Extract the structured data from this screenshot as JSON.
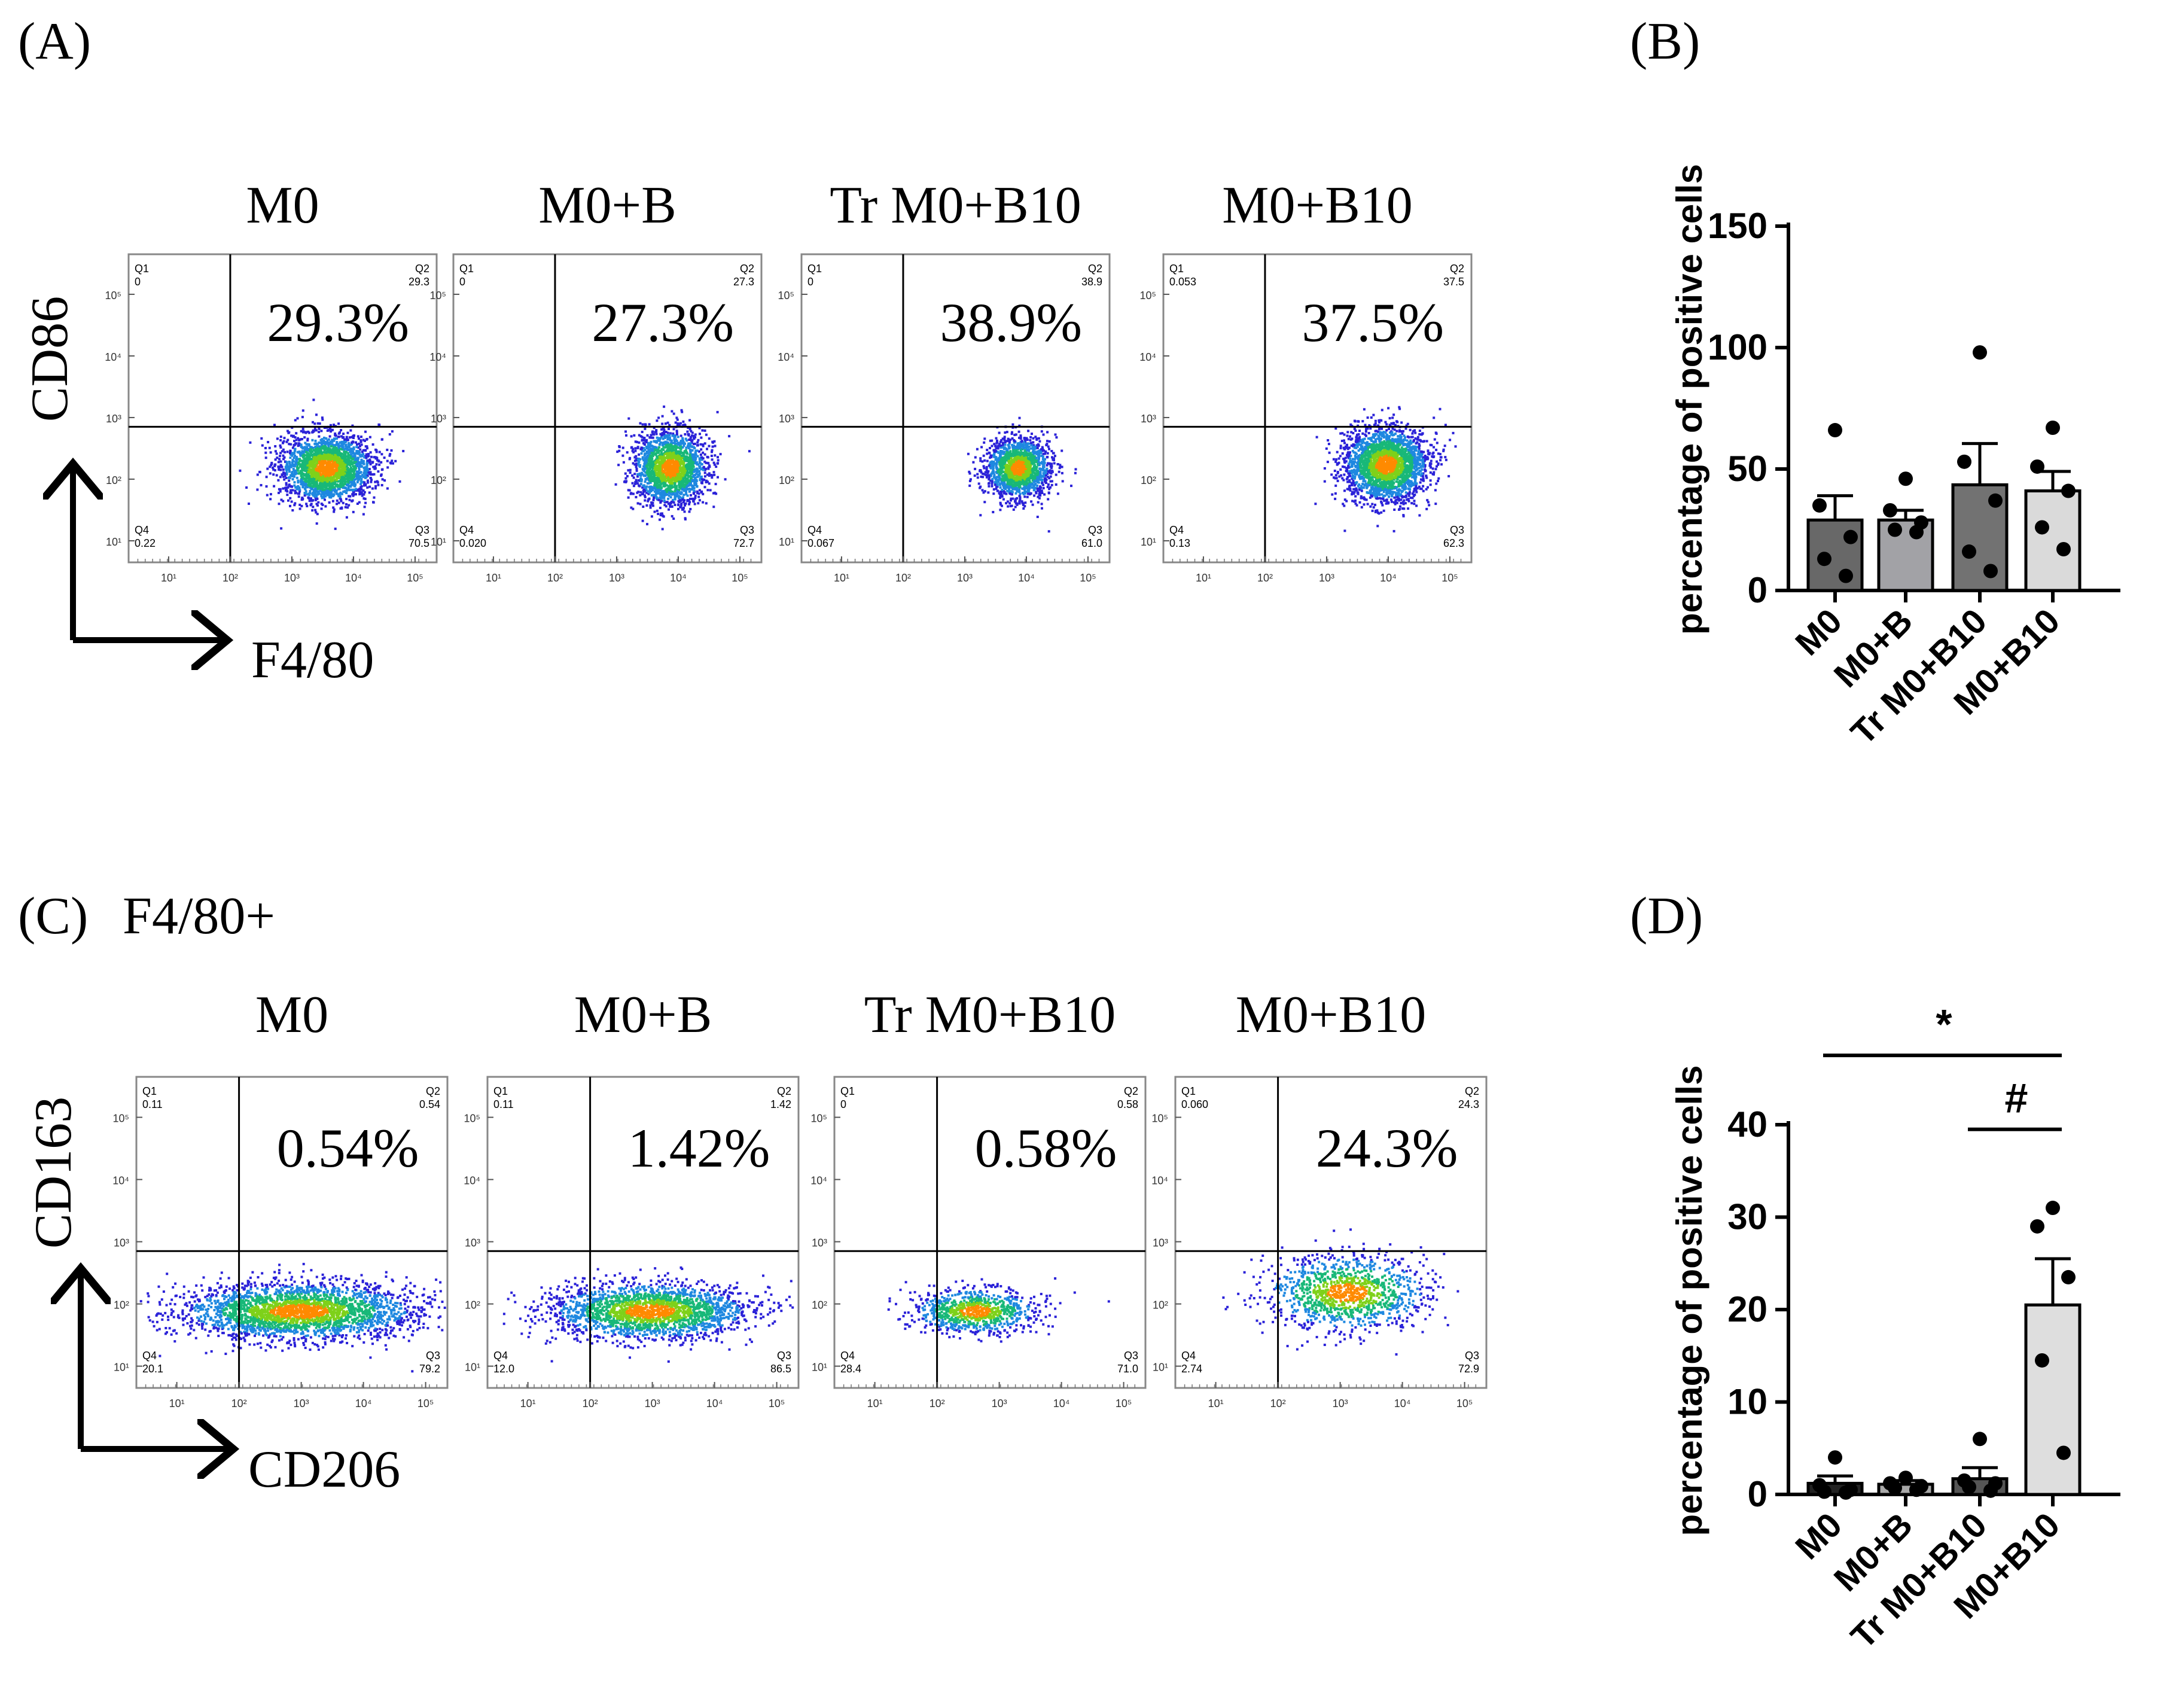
{
  "panel_labels": {
    "a": "(A)",
    "b": "(B)",
    "c": "(C)",
    "c_sub": "F4/80+",
    "d": "(D)"
  },
  "flow_a": {
    "y_axis_label": "CD86",
    "x_axis_label": "F4/80",
    "plots": [
      {
        "title": "M0",
        "big_pct": "29.3%",
        "q1_name": "Q1",
        "q1": "0",
        "q2_name": "Q2",
        "q2": "29.3",
        "q3_name": "Q3",
        "q3": "70.5",
        "q4_name": "Q4",
        "q4": "0.22"
      },
      {
        "title": "M0+B",
        "big_pct": "27.3%",
        "q1_name": "Q1",
        "q1": "0",
        "q2_name": "Q2",
        "q2": "27.3",
        "q3_name": "Q3",
        "q3": "72.7",
        "q4_name": "Q4",
        "q4": "0.020"
      },
      {
        "title": "Tr M0+B10",
        "big_pct": "38.9%",
        "q1_name": "Q1",
        "q1": "0",
        "q2_name": "Q2",
        "q2": "38.9",
        "q3_name": "Q3",
        "q3": "61.0",
        "q4_name": "Q4",
        "q4": "0.067"
      },
      {
        "title": "M0+B10",
        "big_pct": "37.5%",
        "q1_name": "Q1",
        "q1": "0.053",
        "q2_name": "Q2",
        "q2": "37.5",
        "q3_name": "Q3",
        "q3": "62.3",
        "q4_name": "Q4",
        "q4": "0.13"
      }
    ]
  },
  "flow_c": {
    "y_axis_label": "CD163",
    "x_axis_label": "CD206",
    "plots": [
      {
        "title": "M0",
        "big_pct": "0.54%",
        "q1_name": "Q1",
        "q1": "0.11",
        "q2_name": "Q2",
        "q2": "0.54",
        "q3_name": "Q3",
        "q3": "79.2",
        "q4_name": "Q4",
        "q4": "20.1"
      },
      {
        "title": "M0+B",
        "big_pct": "1.42%",
        "q1_name": "Q1",
        "q1": "0.11",
        "q2_name": "Q2",
        "q2": "1.42",
        "q3_name": "Q3",
        "q3": "86.5",
        "q4_name": "Q4",
        "q4": "12.0"
      },
      {
        "title": "Tr M0+B10",
        "big_pct": "0.58%",
        "q1_name": "Q1",
        "q1": "0",
        "q2_name": "Q2",
        "q2": "0.58",
        "q3_name": "Q3",
        "q3": "71.0",
        "q4_name": "Q4",
        "q4": "28.4"
      },
      {
        "title": "M0+B10",
        "big_pct": "24.3%",
        "q1_name": "Q1",
        "q1": "0.060",
        "q2_name": "Q2",
        "q2": "24.3",
        "q3_name": "Q3",
        "q3": "72.9",
        "q4_name": "Q4",
        "q4": "2.74"
      }
    ]
  },
  "flow_tick_labels": [
    "10¹",
    "10²",
    "10³",
    "10⁴",
    "10⁵"
  ],
  "chart_data": [
    {
      "id": "B",
      "type": "bar",
      "ylabel": "percentage of positive cells",
      "categories": [
        "M0",
        "M0+B",
        "Tr M0+B10",
        "M0+B10"
      ],
      "values": [
        29,
        29,
        43.5,
        41
      ],
      "errors": [
        10,
        4,
        17,
        8
      ],
      "points": [
        [
          66,
          35,
          22,
          13,
          6
        ],
        [
          46,
          33,
          28,
          25,
          24
        ],
        [
          98,
          53,
          37,
          16,
          8
        ],
        [
          67,
          51,
          41,
          26,
          17
        ]
      ],
      "ylim": [
        0,
        150
      ],
      "yticks": [
        "0",
        "50",
        "100",
        "150"
      ],
      "bar_colors": [
        "#686868",
        "#a2a2a6",
        "#727272",
        "#dadada"
      ]
    },
    {
      "id": "D",
      "type": "bar",
      "ylabel": "percentage of positive cells",
      "categories": [
        "M0",
        "M0+B",
        "Tr M0+B10",
        "M0+B10"
      ],
      "values": [
        1.2,
        1.1,
        1.7,
        20.5
      ],
      "errors": [
        0.8,
        0.4,
        1.2,
        5
      ],
      "points": [
        [
          4,
          1,
          0.5,
          0.3,
          0.2
        ],
        [
          1.8,
          1.2,
          0.9,
          0.7,
          0.5
        ],
        [
          6,
          1.5,
          1.2,
          0.8,
          0.4
        ],
        [
          31,
          29,
          23.5,
          14.5,
          4.5
        ]
      ],
      "ylim": [
        0,
        40
      ],
      "yticks": [
        "0",
        "10",
        "20",
        "30",
        "40"
      ],
      "bar_colors": [
        "#222222",
        "#a8a8a8",
        "#555555",
        "#dedede"
      ],
      "annotations": [
        {
          "text": "*",
          "from": 0,
          "to": 3,
          "y": 47.5
        },
        {
          "text": "#",
          "from": 2,
          "to": 3,
          "y": 39.5
        }
      ]
    }
  ]
}
